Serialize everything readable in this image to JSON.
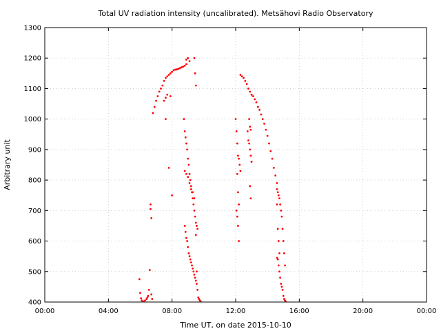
{
  "chart_data": {
    "type": "scatter",
    "title": "Total UV radiation intensity (uncalibrated). Metsähovi Radio Observatory",
    "xlabel": "Time UT, on date 2015-10-10",
    "ylabel": "Arbitrary unit",
    "xlim": [
      0,
      24
    ],
    "ylim": [
      400,
      1300
    ],
    "x_ticks": [
      0,
      4,
      8,
      12,
      16,
      20,
      24
    ],
    "x_tick_labels": [
      "00:00",
      "04:00",
      "08:00",
      "12:00",
      "16:00",
      "20:00",
      "00:00"
    ],
    "y_ticks": [
      400,
      500,
      600,
      700,
      800,
      900,
      1000,
      1100,
      1200,
      1300
    ],
    "y_tick_labels": [
      "400",
      "500",
      "600",
      "700",
      "800",
      "900",
      "1000",
      "1100",
      "1200",
      "1300"
    ],
    "grid": true,
    "color": "#ff0000",
    "series": [
      {
        "x": [
          5.95,
          6.0,
          6.05,
          6.1,
          6.2,
          6.3,
          6.4,
          6.45,
          6.5,
          6.55,
          6.6,
          6.65,
          6.65,
          6.7,
          6.7,
          6.75,
          6.8,
          6.9,
          7.0,
          7.1,
          7.2,
          7.3,
          7.4,
          7.5,
          7.6,
          7.7,
          7.8,
          7.9,
          8.0,
          8.1,
          8.2,
          8.3,
          8.4,
          8.5,
          8.6,
          8.7,
          8.8,
          7.5,
          7.6,
          7.7,
          7.9,
          7.6,
          7.8,
          8.0,
          8.9,
          9.0,
          9.1,
          8.9,
          9.4,
          9.45,
          9.5,
          8.75,
          8.8,
          8.85,
          8.9,
          8.95,
          9.0,
          9.05,
          9.1,
          9.15,
          9.2,
          9.25,
          9.3,
          9.35,
          9.4,
          9.45,
          9.5,
          9.55,
          9.6,
          8.8,
          8.85,
          8.9,
          8.95,
          9.0,
          9.05,
          9.1,
          9.15,
          9.2,
          9.25,
          9.3,
          9.35,
          9.4,
          9.45,
          9.5,
          9.55,
          8.8,
          8.9,
          9.0,
          9.1,
          9.2,
          9.3,
          9.4,
          9.5,
          9.55,
          9.6,
          9.65,
          9.7,
          9.75,
          9.8,
          12.0,
          12.05,
          12.1,
          12.15,
          12.2,
          12.25,
          12.3,
          12.1,
          12.15,
          12.2,
          12.05,
          12.1,
          12.15,
          12.2,
          12.3,
          12.4,
          12.5,
          12.6,
          12.7,
          12.8,
          12.9,
          13.0,
          12.85,
          12.9,
          12.95,
          12.75,
          12.8,
          12.85,
          12.9,
          12.95,
          13.0,
          12.9,
          12.95,
          13.0,
          13.1,
          13.2,
          13.3,
          13.4,
          13.5,
          13.6,
          13.7,
          13.8,
          13.9,
          14.0,
          14.1,
          14.2,
          14.3,
          14.4,
          14.5,
          14.6,
          14.6,
          14.65,
          14.7,
          14.75,
          14.8,
          14.85,
          14.9,
          14.95,
          15.0,
          15.05,
          15.1,
          14.6,
          14.65,
          14.7,
          14.75,
          14.6,
          14.65,
          14.7,
          14.75,
          14.8,
          14.85,
          14.9,
          14.95,
          15.0,
          15.05,
          15.1,
          15.15
        ],
        "y": [
          475,
          430,
          412,
          405,
          402,
          405,
          410,
          415,
          420,
          440,
          505,
          720,
          705,
          675,
          425,
          410,
          1020,
          1040,
          1060,
          1075,
          1090,
          1100,
          1110,
          1125,
          1135,
          1140,
          1145,
          1150,
          1155,
          1160,
          1162,
          1163,
          1165,
          1167,
          1170,
          1172,
          1175,
          1060,
          1070,
          1080,
          1075,
          1000,
          840,
          750,
          1195,
          1200,
          1190,
          1180,
          1200,
          1150,
          1110,
          1000,
          960,
          940,
          920,
          900,
          870,
          850,
          820,
          800,
          780,
          760,
          740,
          720,
          700,
          680,
          660,
          650,
          640,
          650,
          630,
          610,
          600,
          580,
          560,
          550,
          540,
          530,
          520,
          510,
          500,
          490,
          480,
          470,
          460,
          830,
          820,
          810,
          790,
          770,
          760,
          740,
          620,
          500,
          440,
          415,
          410,
          405,
          402,
          1000,
          960,
          920,
          880,
          870,
          850,
          830,
          820,
          760,
          720,
          700,
          680,
          650,
          600,
          1145,
          1140,
          1135,
          1125,
          1115,
          1100,
          1090,
          1080,
          1000,
          975,
          965,
          960,
          930,
          920,
          900,
          880,
          860,
          780,
          740,
          1080,
          1075,
          1065,
          1055,
          1040,
          1030,
          1015,
          1000,
          985,
          965,
          945,
          920,
          895,
          870,
          840,
          815,
          790,
          770,
          760,
          750,
          740,
          720,
          700,
          680,
          640,
          600,
          560,
          520,
          720,
          640,
          600,
          560,
          545,
          540,
          520,
          500,
          480,
          460,
          450,
          440,
          420,
          410,
          405,
          402
        ]
      }
    ]
  }
}
